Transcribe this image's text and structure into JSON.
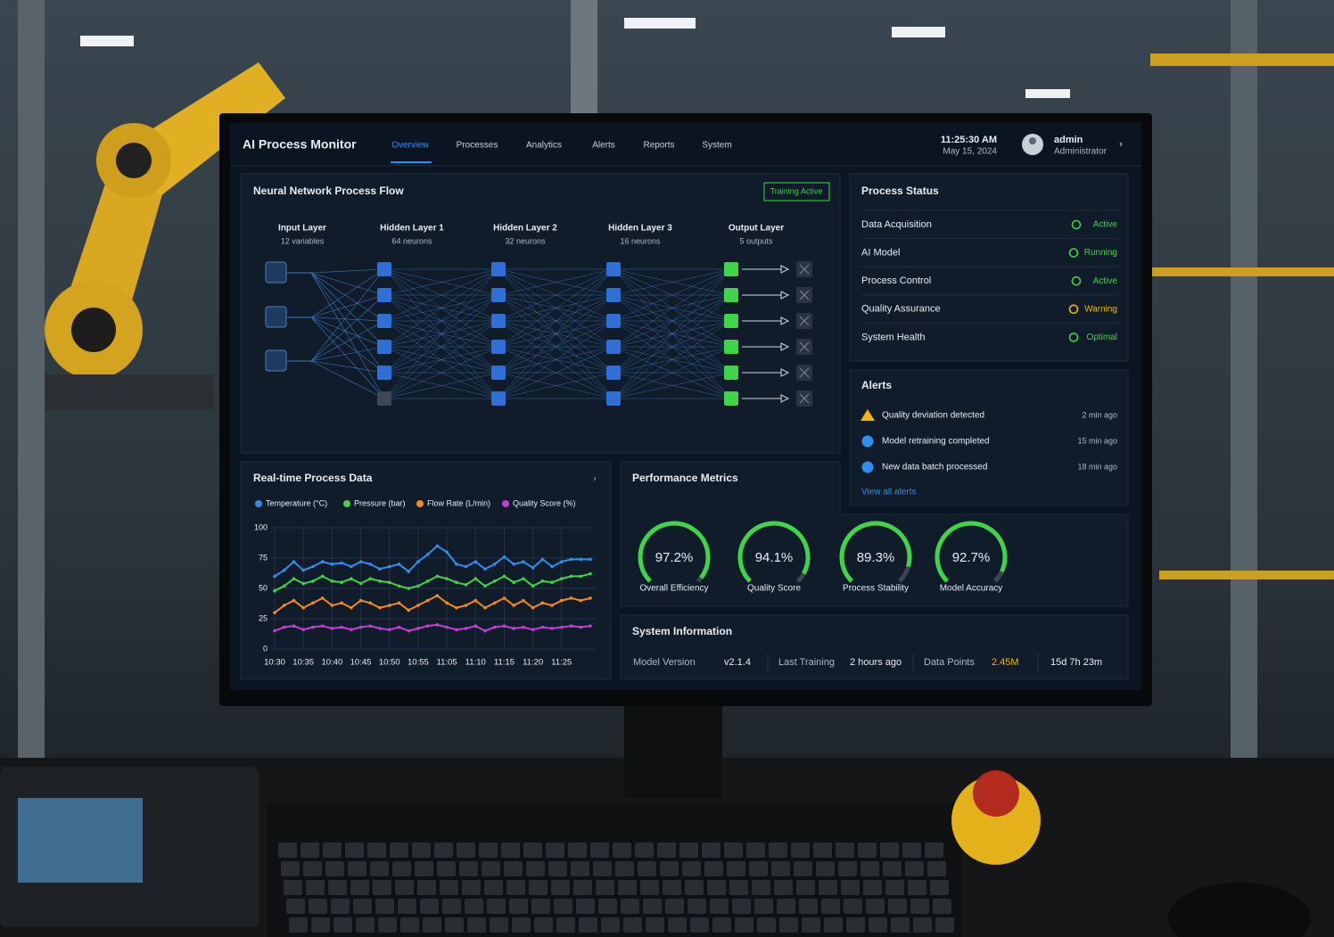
{
  "header": {
    "title": "AI Process Monitor",
    "nav": [
      "Overview",
      "Processes",
      "Analytics",
      "Alerts",
      "Reports",
      "System"
    ],
    "time": "11:25:30 AM",
    "date": "May 15, 2024",
    "user": "admin",
    "role": "Administrator"
  },
  "network": {
    "title": "Neural Network Process Flow",
    "badge": "Training Active",
    "layers": [
      {
        "name": "Input Layer",
        "detail": "12 variables"
      },
      {
        "name": "Hidden Layer 1",
        "detail": "64 neurons"
      },
      {
        "name": "Hidden Layer 2",
        "detail": "32 neurons"
      },
      {
        "name": "Hidden Layer 3",
        "detail": "16 neurons"
      },
      {
        "name": "Output Layer",
        "detail": "5 outputs"
      }
    ]
  },
  "process_status": {
    "title": "Process Status",
    "rows": [
      {
        "name": "Data Acquisition",
        "status": "Active",
        "color": "#3fd44a"
      },
      {
        "name": "AI Model",
        "status": "Running",
        "color": "#3fd44a"
      },
      {
        "name": "Process Control",
        "status": "Active",
        "color": "#3fd44a"
      },
      {
        "name": "Quality Assurance",
        "status": "Warning",
        "color": "#f2b705"
      },
      {
        "name": "System Health",
        "status": "Optimal",
        "color": "#3fd44a"
      }
    ]
  },
  "alerts": {
    "title": "Alerts",
    "items": [
      {
        "text": "Quality deviation detected",
        "time": "2 min ago",
        "icon_color": "#f2b705"
      },
      {
        "text": "Model retraining completed",
        "time": "15 min ago",
        "icon_color": "#2f8ff0"
      },
      {
        "text": "New data batch processed",
        "time": "18 min ago",
        "icon_color": "#2f8ff0"
      }
    ],
    "link": "View all alerts"
  },
  "realtime": {
    "type": "line",
    "title": "Real-time Process Data",
    "categories": [
      "10:30",
      null,
      null,
      "10:35",
      null,
      null,
      "10:40",
      null,
      null,
      "10:45",
      null,
      null,
      "10:50",
      null,
      null,
      "10:55",
      null,
      null,
      "11:05",
      null,
      null,
      "11:10",
      null,
      null,
      "11:15",
      null,
      null,
      "11:20",
      null,
      null,
      "11:25",
      null,
      null,
      null
    ],
    "series": [
      {
        "name": "Temperature (°C)",
        "color": "#2f8ff0",
        "values": [
          60,
          65,
          72,
          65,
          68,
          72,
          70,
          71,
          68,
          72,
          70,
          66,
          68,
          70,
          64,
          72,
          78,
          85,
          80,
          70,
          68,
          72,
          66,
          70,
          76,
          70,
          72,
          67,
          74,
          68,
          72,
          74,
          74,
          74
        ]
      },
      {
        "name": "Pressure (bar)",
        "color": "#3fd44a",
        "values": [
          48,
          52,
          58,
          54,
          56,
          60,
          56,
          55,
          58,
          54,
          58,
          56,
          55,
          52,
          50,
          52,
          56,
          60,
          58,
          55,
          53,
          58,
          52,
          56,
          60,
          55,
          58,
          52,
          56,
          55,
          58,
          60,
          60,
          62
        ]
      },
      {
        "name": "Flow Rate (L/min)",
        "color": "#f58a1f",
        "values": [
          30,
          36,
          40,
          34,
          38,
          42,
          36,
          38,
          34,
          40,
          38,
          34,
          36,
          38,
          32,
          36,
          40,
          44,
          38,
          34,
          36,
          40,
          34,
          38,
          42,
          36,
          40,
          34,
          38,
          36,
          40,
          42,
          40,
          42
        ]
      },
      {
        "name": "Quality Score (%)",
        "color": "#c23fd6",
        "values": [
          15,
          18,
          19,
          16,
          18,
          19,
          17,
          18,
          16,
          18,
          19,
          17,
          16,
          18,
          15,
          17,
          19,
          20,
          18,
          16,
          17,
          19,
          15,
          18,
          19,
          17,
          18,
          16,
          18,
          17,
          18,
          19,
          18,
          19
        ]
      }
    ],
    "ylim": [
      0,
      100
    ],
    "yticks": [
      0,
      25,
      50,
      75,
      100
    ],
    "grid": true
  },
  "metrics": {
    "title": "Performance Metrics",
    "labels": [
      "Overall Efficiency",
      "Quality Score",
      "Process Stability",
      "Model Accuracy"
    ],
    "values": [
      97.2,
      94.1,
      89.3,
      92.7
    ],
    "value_labels": [
      "97.2%",
      "94.1%",
      "89.3%",
      "92.7%"
    ],
    "max": 100,
    "color": "#3fd44a"
  },
  "system_info": {
    "title": "System Information",
    "items": [
      {
        "label": "Model Version",
        "value": "v2.1.4"
      },
      {
        "label": "Last Training",
        "value": "2 hours ago"
      },
      {
        "label": "Data Points",
        "value": "2.45M"
      },
      {
        "value": "15d 7h 23m"
      }
    ]
  }
}
